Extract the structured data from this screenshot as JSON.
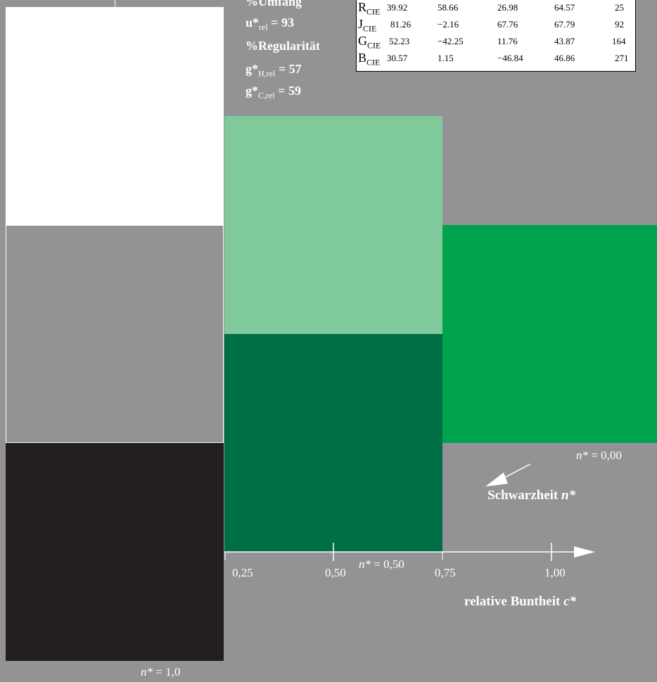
{
  "stats": {
    "umfang_title": "%Umfang",
    "u_rel": "93",
    "regularitaet_title": "%Regularität",
    "g_h_rel": "57",
    "g_c_rel": "59"
  },
  "table": {
    "rows": [
      {
        "label": "R",
        "sub": "CIE",
        "v1": "39.92",
        "v2": "58.66",
        "v3": "26.98",
        "v4": "64.57",
        "v5": "25"
      },
      {
        "label": "J",
        "sub": "CIE",
        "v1": "81.26",
        "v2": "−2.16",
        "v3": "67.76",
        "v4": "67.79",
        "v5": "92"
      },
      {
        "label": "G",
        "sub": "CIE",
        "v1": "52.23",
        "v2": "−42.25",
        "v3": "11.76",
        "v4": "43.87",
        "v5": "164"
      },
      {
        "label": "B",
        "sub": "CIE",
        "v1": "30.57",
        "v2": "1.15",
        "v3": "−46.84",
        "v4": "46.86",
        "v5": "271"
      }
    ]
  },
  "colors": {
    "background": "#939395",
    "white": "#ffffff",
    "grey": "#939395",
    "black": "#231f20",
    "light_green": "#80c99b",
    "dark_green": "#006f46",
    "full_green": "#00a34d"
  },
  "axis": {
    "ticks": [
      "0,25",
      "0,50",
      "0,75",
      "1,00"
    ],
    "c_label": "relative Buntheit",
    "c_symbol": "c*",
    "n_label": "Schwarzheit",
    "n_symbol": "n*"
  },
  "n_labels": {
    "n000": "= 0,00",
    "n050": "= 0,50",
    "n10": "= 1,0",
    "n_symbol": "n*"
  }
}
